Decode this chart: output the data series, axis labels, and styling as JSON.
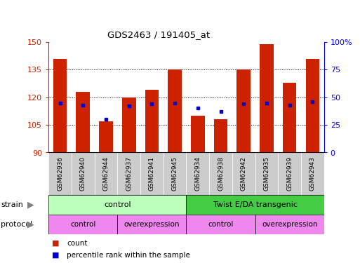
{
  "title": "GDS2463 / 191405_at",
  "samples": [
    "GSM62936",
    "GSM62940",
    "GSM62944",
    "GSM62937",
    "GSM62941",
    "GSM62945",
    "GSM62934",
    "GSM62938",
    "GSM62942",
    "GSM62935",
    "GSM62939",
    "GSM62943"
  ],
  "counts": [
    141,
    123,
    107,
    120,
    124,
    135,
    110,
    108,
    135,
    149,
    128,
    141
  ],
  "percentile_ranks": [
    45,
    43,
    30,
    42,
    44,
    45,
    40,
    37,
    44,
    45,
    43,
    46
  ],
  "y_min": 90,
  "y_max": 150,
  "y_ticks": [
    90,
    105,
    120,
    135,
    150
  ],
  "y2_ticks": [
    0,
    25,
    50,
    75,
    100
  ],
  "bar_color": "#cc2200",
  "marker_color": "#0000cc",
  "strain_colors": [
    "#bbffbb",
    "#44cc44"
  ],
  "strain_texts": [
    "control",
    "Twist E/DA transgenic"
  ],
  "strain_starts": [
    0,
    6
  ],
  "strain_ends": [
    6,
    12
  ],
  "protocol_color": "#ee88ee",
  "protocol_texts": [
    "control",
    "overexpression",
    "control",
    "overexpression"
  ],
  "protocol_starts": [
    0,
    3,
    6,
    9
  ],
  "protocol_ends": [
    3,
    6,
    9,
    12
  ],
  "bg_color": "#ffffff",
  "plot_bg": "#ffffff",
  "tick_bg": "#cccccc"
}
